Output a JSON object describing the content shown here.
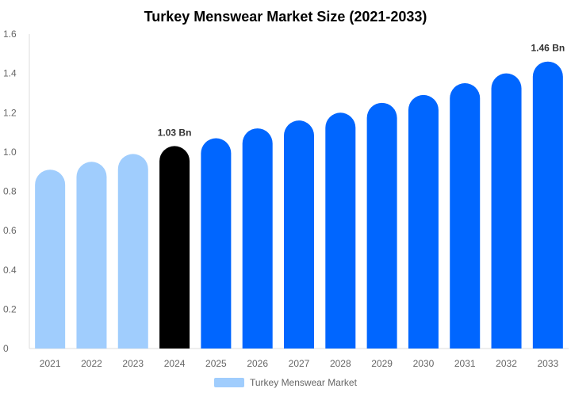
{
  "chart_data": {
    "type": "bar",
    "title": "Turkey Menswear Market Size (2021-2033)",
    "xlabel": "",
    "ylabel": "",
    "categories": [
      "2021",
      "2022",
      "2023",
      "2024",
      "2025",
      "2026",
      "2027",
      "2028",
      "2029",
      "2030",
      "2031",
      "2032",
      "2033"
    ],
    "series": [
      {
        "name": "Turkey Menswear Market",
        "values": [
          0.91,
          0.95,
          0.99,
          1.03,
          1.07,
          1.12,
          1.16,
          1.2,
          1.25,
          1.29,
          1.35,
          1.4,
          1.46
        ]
      }
    ],
    "ylim": [
      0,
      1.6
    ],
    "yticks": [
      "0",
      "0.2",
      "0.4",
      "0.6",
      "0.8",
      "1.0",
      "1.2",
      "1.4",
      "1.6"
    ],
    "data_labels": {
      "2024": "1.03 Bn",
      "2033": "1.46 Bn"
    },
    "grid": false,
    "legend_placement": "bottom",
    "colors": {
      "historical": "#a0cdfd",
      "current": "#000000",
      "forecast": "#0066ff",
      "legend_swatch": "#a0cdfd"
    }
  }
}
